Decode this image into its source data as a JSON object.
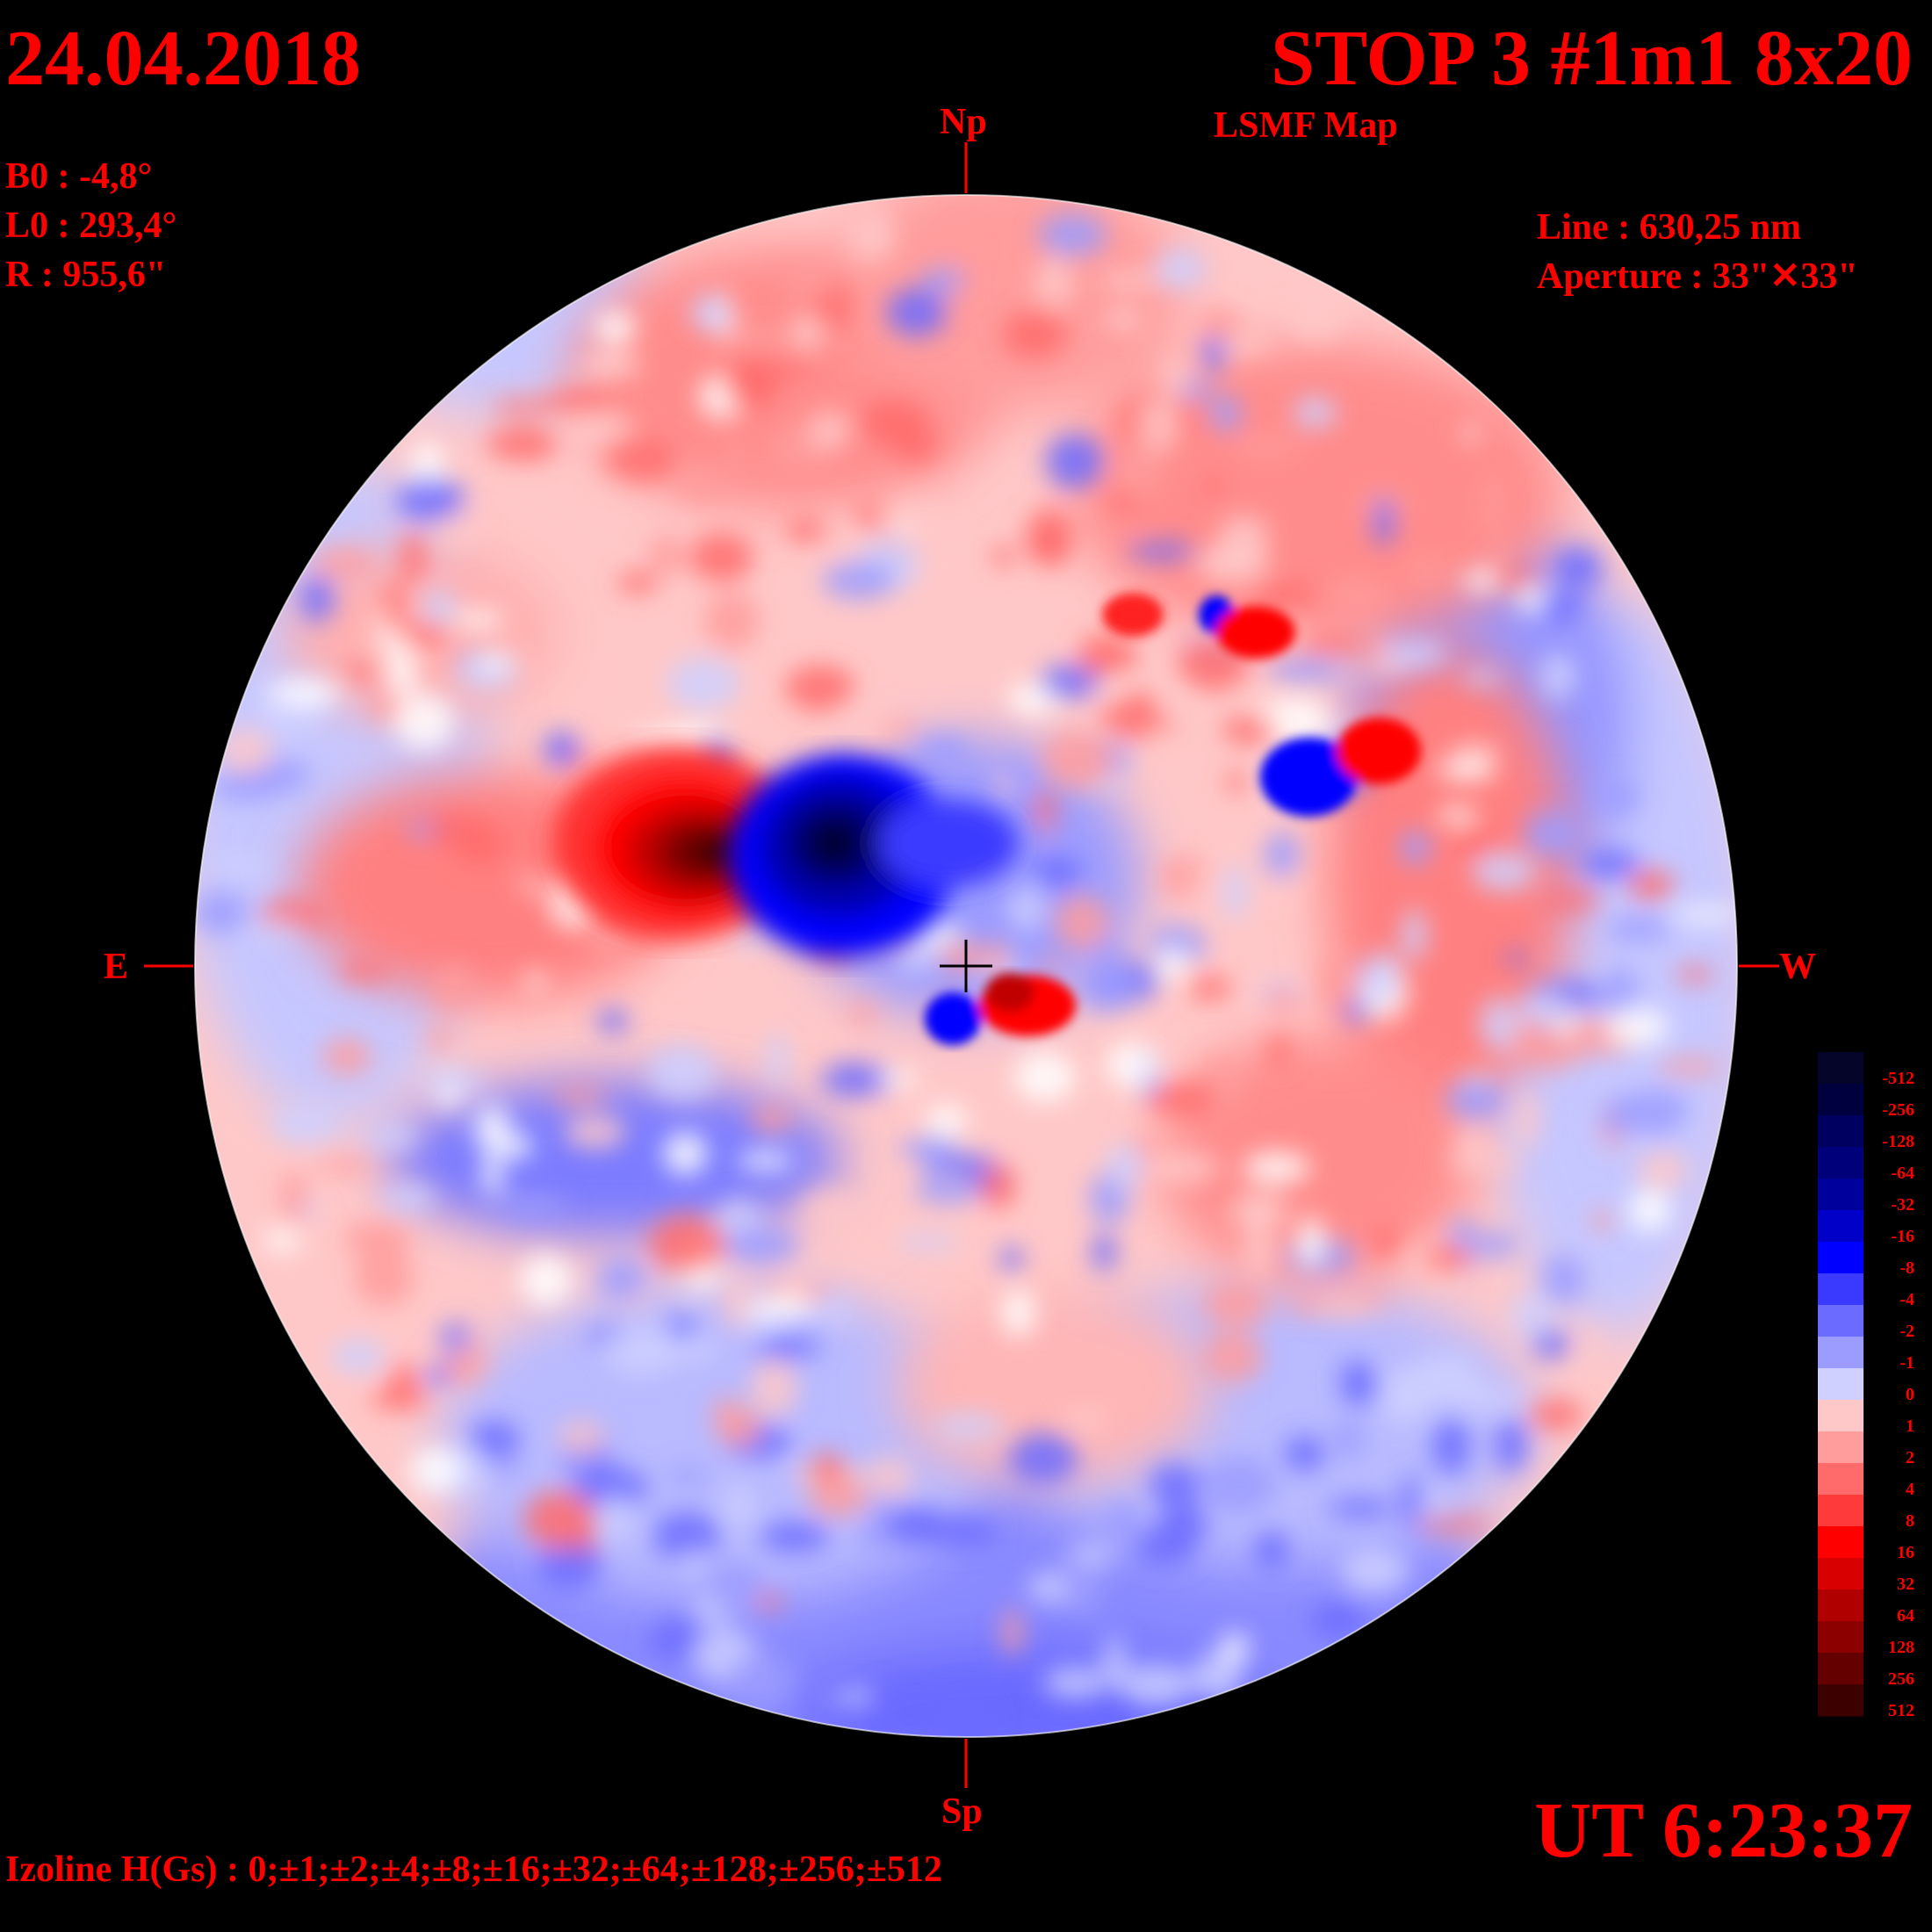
{
  "header": {
    "date": "24.04.2018",
    "title": "STOP 3 #1m1 8x20",
    "subtitle": "LSMF  Map"
  },
  "params": {
    "b0": "B0 : -4,8°",
    "l0": "L0 : 293,4°",
    "r": "R  : 955,6\"",
    "line": "Line :  630,25 nm",
    "aperture": "Aperture : 33\"✕33\""
  },
  "axes": {
    "north": "Np",
    "south": "Sp",
    "east": "E",
    "west": "W"
  },
  "footer": {
    "ut": "UT 6:23:37",
    "izoline": "Izoline H(Gs) : 0;±1;±2;±4;±8;±16;±32;±64;±128;±256;±512"
  },
  "colorbar": {
    "labels": [
      "-512",
      "-256",
      "-128",
      "-64",
      "-32",
      "-16",
      "-8",
      "-4",
      "-2",
      "-1",
      "0",
      "1",
      "2",
      "4",
      "8",
      "16",
      "32",
      "64",
      "128",
      "256",
      "512"
    ],
    "colors": [
      "#05052a",
      "#00003f",
      "#000060",
      "#00007a",
      "#00009c",
      "#0000c8",
      "#0000ff",
      "#3a3aff",
      "#6b6bff",
      "#9c9cff",
      "#cfd0ff",
      "#ffc8c8",
      "#ff9c9c",
      "#ff6b6b",
      "#ff3a3a",
      "#ff0000",
      "#d80000",
      "#b00000",
      "#8c0000",
      "#640000",
      "#3c0000"
    ]
  },
  "colors": {
    "text": "#ff0000",
    "background": "#000000",
    "pos_weak": "#ffc8c8",
    "pos_mid": "#ff8080",
    "pos_strong": "#ff0000",
    "pos_peak": "#500000",
    "neg_weak": "#cfd0ff",
    "neg_mid": "#7070ff",
    "neg_strong": "#0000dd",
    "neg_peak": "#00002a"
  }
}
